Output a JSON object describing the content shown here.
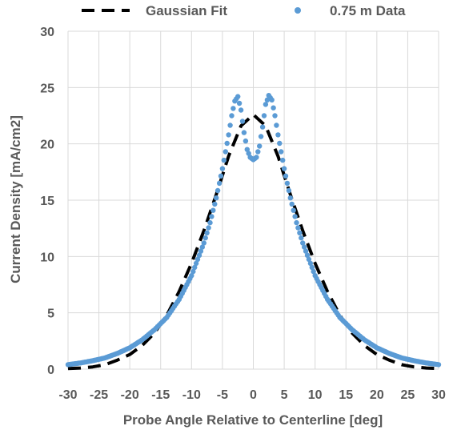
{
  "chart_data": {
    "type": "scatter",
    "xlabel": "Probe Angle Relative to Centerline [deg]",
    "ylabel": "Current Density [mA/cm2]",
    "xlim": [
      -30,
      30
    ],
    "ylim": [
      0,
      30
    ],
    "xticks": [
      "-30",
      "-25",
      "-20",
      "-15",
      "-10",
      "-5",
      "0",
      "5",
      "10",
      "15",
      "20",
      "25",
      "30"
    ],
    "yticks": [
      "0",
      "5",
      "10",
      "15",
      "20",
      "25",
      "30"
    ],
    "grid": true,
    "legend_position": "top",
    "colors": {
      "fit": "#000000",
      "data": "#5b9bd5",
      "grid": "#d9d9d9",
      "text": "#595959"
    },
    "series": [
      {
        "name": "Gaussian Fit",
        "style": "dashed-line",
        "x": [
          -30,
          -28,
          -26,
          -24,
          -22,
          -20,
          -18,
          -16,
          -14,
          -12,
          -10,
          -8,
          -6,
          -4,
          -2,
          0,
          2,
          4,
          6,
          8,
          10,
          12,
          14,
          16,
          18,
          20,
          22,
          24,
          26,
          28,
          30
        ],
        "y": [
          0.05,
          0.1,
          0.2,
          0.4,
          0.8,
          1.3,
          2.1,
          3.2,
          4.8,
          6.9,
          9.4,
          12.3,
          15.5,
          18.9,
          21.6,
          22.6,
          21.6,
          18.9,
          15.5,
          12.3,
          9.4,
          6.9,
          4.8,
          3.2,
          2.1,
          1.3,
          0.8,
          0.4,
          0.2,
          0.1,
          0.05
        ]
      },
      {
        "name": "0.75 m Data",
        "style": "markers",
        "x": [
          -30,
          -28,
          -26,
          -24,
          -22,
          -20,
          -18,
          -16,
          -14,
          -12,
          -10,
          -8,
          -7,
          -6,
          -5,
          -4,
          -3.5,
          -3,
          -2.5,
          -2,
          -1.5,
          -1,
          -0.5,
          0,
          0.5,
          1,
          1.5,
          2,
          2.5,
          3,
          3.5,
          4,
          5,
          6,
          7,
          8,
          10,
          12,
          14,
          16,
          18,
          20,
          22,
          24,
          26,
          28,
          30
        ],
        "y": [
          0.4,
          0.55,
          0.75,
          1.0,
          1.4,
          1.9,
          2.6,
          3.5,
          4.6,
          6.2,
          8.3,
          11.2,
          13.0,
          15.2,
          17.8,
          20.8,
          22.5,
          23.8,
          24.2,
          23.0,
          21.0,
          19.5,
          18.8,
          18.6,
          18.8,
          19.8,
          21.5,
          23.5,
          24.3,
          23.9,
          22.5,
          20.8,
          17.8,
          15.2,
          13.0,
          11.2,
          8.3,
          6.2,
          4.6,
          3.5,
          2.6,
          1.9,
          1.4,
          1.0,
          0.75,
          0.55,
          0.4
        ]
      }
    ]
  }
}
